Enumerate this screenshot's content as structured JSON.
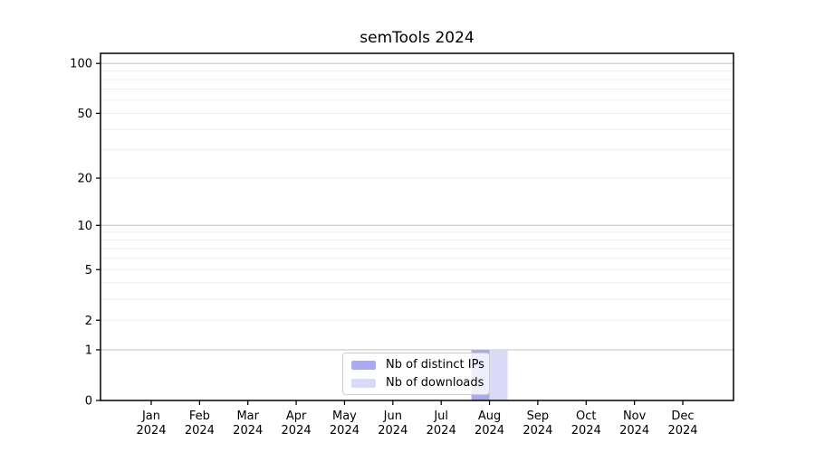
{
  "chart_data": {
    "type": "bar",
    "title": "semTools 2024",
    "categories": [
      "Jan",
      "Feb",
      "Mar",
      "Apr",
      "May",
      "Jun",
      "Jul",
      "Aug",
      "Sep",
      "Oct",
      "Nov",
      "Dec"
    ],
    "category_year": "2024",
    "series": [
      {
        "name": "Nb of distinct IPs",
        "color": "#aaaaf2",
        "values": [
          0,
          0,
          0,
          0,
          0,
          0,
          0,
          1,
          0,
          0,
          0,
          0
        ]
      },
      {
        "name": "Nb of downloads",
        "color": "#dadaf8",
        "values": [
          0,
          0,
          0,
          0,
          0,
          0,
          0,
          1,
          0,
          0,
          0,
          0
        ]
      }
    ],
    "xlabel": "",
    "ylabel": "",
    "yscale": "log1p",
    "ylim": [
      0,
      115
    ],
    "ytick_values": [
      0,
      1,
      2,
      5,
      10,
      20,
      50,
      100
    ],
    "ytick_labels": [
      "0",
      "1",
      "2",
      "5",
      "10",
      "20",
      "50",
      "100"
    ],
    "gridline_values": [
      1,
      2,
      3,
      4,
      5,
      6,
      7,
      8,
      9,
      10,
      20,
      30,
      40,
      50,
      60,
      70,
      80,
      90,
      100
    ],
    "grid": "horizontal",
    "legend_position": "lower center"
  },
  "colors": {
    "grid_minor": "#ececec",
    "grid_major": "#c0c0c0",
    "axis": "#000000",
    "tick_label": "#000000",
    "background": "#ffffff",
    "legend_border": "#cccccc"
  }
}
